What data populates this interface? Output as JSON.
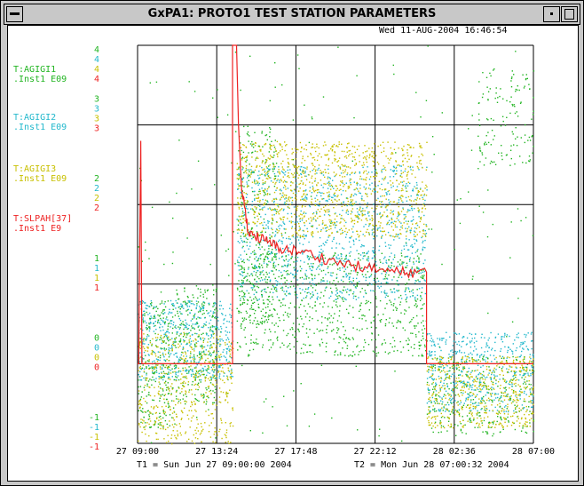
{
  "window": {
    "title": "GxPA1: PROTO1  TEST STATION PARAMETERS"
  },
  "timestamp": "Wed 11-AUG-2004 16:46:54",
  "t1_label": "T1 = Sun Jun 27 09:00:00 2004",
  "t2_label": "T2 = Mon Jun 28 07:00:32 2004",
  "colors": {
    "green": "#22b522",
    "cyan": "#22b8cc",
    "yellow": "#c8c000",
    "red": "#ee2222",
    "grid": "#000000"
  },
  "chart_data": {
    "type": "scatter",
    "x_ticks": [
      "27 09:00",
      "27 13:24",
      "27 17:48",
      "27 22:12",
      "28 02:36",
      "28 07:00"
    ],
    "ylim": [
      -1,
      4
    ],
    "grid": true,
    "series": [
      {
        "name": "T:AGIGI1",
        "unit_label": ".Inst1  E09",
        "color": "green",
        "type": "scatter",
        "y_ticks": [
          "4",
          "3",
          "2",
          "1",
          "0",
          "-1"
        ],
        "ranges": [
          {
            "x": [
              0.0,
              0.095
            ],
            "y": [
              -0.8,
              0.8
            ]
          },
          {
            "x": [
              0.095,
              0.2
            ],
            "y": [
              -0.5,
              1.0
            ]
          },
          {
            "x": [
              0.25,
              0.35
            ],
            "y": [
              0.5,
              3.0
            ]
          },
          {
            "x": [
              0.25,
              0.73
            ],
            "y": [
              0.1,
              1.4
            ]
          },
          {
            "x": [
              0.73,
              1.0
            ],
            "y": [
              -0.9,
              0.1
            ]
          },
          {
            "x": [
              0.86,
              1.0
            ],
            "y": [
              2.5,
              3.7
            ]
          },
          {
            "x": [
              0.0,
              1.0
            ],
            "y": [
              -1.0,
              4.0
            ]
          }
        ]
      },
      {
        "name": "T:AGIGI2",
        "unit_label": ".Inst1  E09",
        "color": "cyan",
        "type": "scatter",
        "y_ticks": [
          "4",
          "3",
          "2",
          "1",
          "0",
          "-1"
        ],
        "ranges": [
          {
            "x": [
              0.0,
              0.24
            ],
            "y": [
              -0.2,
              0.8
            ]
          },
          {
            "x": [
              0.25,
              0.73
            ],
            "y": [
              0.8,
              2.5
            ]
          },
          {
            "x": [
              0.73,
              1.0
            ],
            "y": [
              -0.6,
              0.4
            ]
          }
        ]
      },
      {
        "name": "T:AGIGI3",
        "unit_label": ".Inst1  E09",
        "color": "yellow",
        "type": "scatter",
        "y_ticks": [
          "4",
          "3",
          "2",
          "1",
          "0",
          "-1"
        ],
        "ranges": [
          {
            "x": [
              0.0,
              0.24
            ],
            "y": [
              -1.0,
              0.4
            ]
          },
          {
            "x": [
              0.25,
              0.73
            ],
            "y": [
              1.6,
              2.8
            ]
          },
          {
            "x": [
              0.73,
              1.0
            ],
            "y": [
              -0.8,
              0.1
            ]
          }
        ]
      },
      {
        "name": "T:SLPAH[37]",
        "unit_label": ".Inst1  E9",
        "color": "red",
        "type": "line",
        "y_ticks": [
          "4",
          "3",
          "2",
          "1",
          "0",
          "-1"
        ],
        "points": [
          [
            0.0,
            0.0
          ],
          [
            0.003,
            0.0
          ],
          [
            0.005,
            1.2
          ],
          [
            0.008,
            2.8
          ],
          [
            0.011,
            0.0
          ],
          [
            0.24,
            0.0
          ],
          [
            0.24,
            4.0
          ],
          [
            0.25,
            4.0
          ],
          [
            0.255,
            3.0
          ],
          [
            0.262,
            2.25
          ],
          [
            0.28,
            1.65
          ],
          [
            0.32,
            1.55
          ],
          [
            0.36,
            1.45
          ],
          [
            0.42,
            1.4
          ],
          [
            0.5,
            1.28
          ],
          [
            0.58,
            1.2
          ],
          [
            0.66,
            1.15
          ],
          [
            0.73,
            1.15
          ],
          [
            0.73,
            0.0
          ],
          [
            1.0,
            0.0
          ]
        ]
      }
    ]
  }
}
